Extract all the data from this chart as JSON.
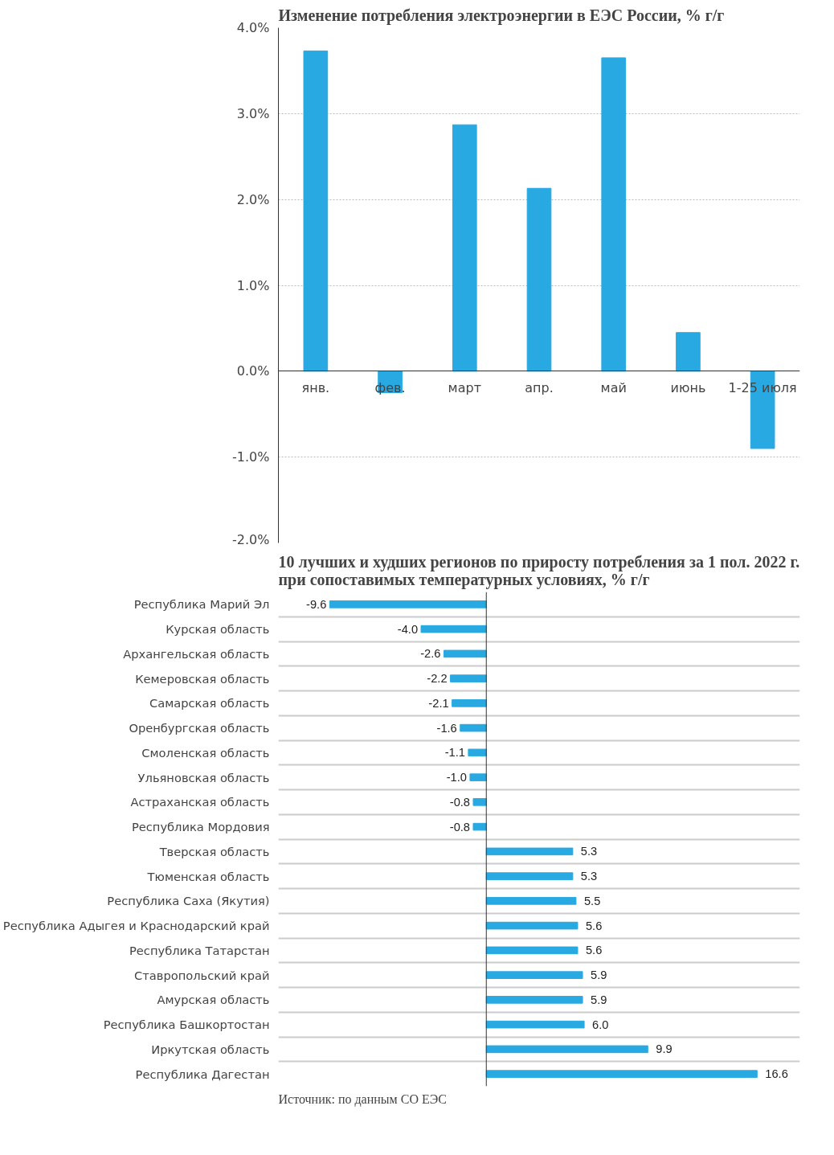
{
  "chart_data": [
    {
      "type": "bar",
      "title": "Изменение потребления электроэнергии в ЕЭС России, % г/г",
      "categories": [
        "янв.",
        "фев.",
        "март",
        "апр.",
        "май",
        "июнь",
        "1-25 июля"
      ],
      "values": [
        3.73,
        -0.25,
        2.87,
        2.13,
        3.65,
        0.45,
        -0.9
      ],
      "color": "#29a9e1",
      "ylim": [
        -2,
        4
      ],
      "yticks": [
        {
          "value": -2,
          "label": "-2.0%"
        },
        {
          "value": -1,
          "label": "-1.0%"
        },
        {
          "value": 0,
          "label": "0.0%"
        },
        {
          "value": 1,
          "label": "1.0%"
        },
        {
          "value": 2,
          "label": "2.0%"
        },
        {
          "value": 3,
          "label": "3.0%"
        },
        {
          "value": 4,
          "label": "4.0%"
        }
      ],
      "grid": "y"
    },
    {
      "type": "bar",
      "orientation": "horizontal",
      "title": "10 лучших и худших регионов по приросту потребления за 1 пол. 2022 г. при сопоставимых температурных условиях, % г/г",
      "categories": [
        "Республика Марий Эл",
        "Курская область",
        "Архангельская область",
        "Кемеровская область",
        "Самарская область",
        "Оренбургская область",
        "Смоленская область",
        "Ульяновская область",
        "Астраханская область",
        "Республика Мордовия",
        "Тверская область",
        "Тюменская область",
        "Республика Саха (Якутия)",
        "Республика Адыгея и Краснодарский край",
        "Республика Татарстан",
        "Ставропольский край",
        "Амурская область",
        "Республика Башкортостан",
        "Иркутская область",
        "Республика Дагестан"
      ],
      "values": [
        -9.6,
        -4.0,
        -2.6,
        -2.2,
        -2.1,
        -1.6,
        -1.1,
        -1.0,
        -0.8,
        -0.8,
        5.3,
        5.3,
        5.5,
        5.6,
        5.6,
        5.9,
        5.9,
        6.0,
        9.9,
        16.6
      ],
      "color": "#29a9e1",
      "value_labels": [
        "-9.6",
        "-4.0",
        "-2.6",
        "-2.2",
        "-2.1",
        "-1.6",
        "-1.1",
        "-1.0",
        "-0.8",
        "-0.8",
        "5.3",
        "5.3",
        "5.5",
        "5.6",
        "5.6",
        "5.9",
        "5.9",
        "6.0",
        "9.9",
        "16.6"
      ],
      "grid": "y",
      "annotations": [
        "Источник: по данным СО ЕЭС"
      ]
    }
  ]
}
